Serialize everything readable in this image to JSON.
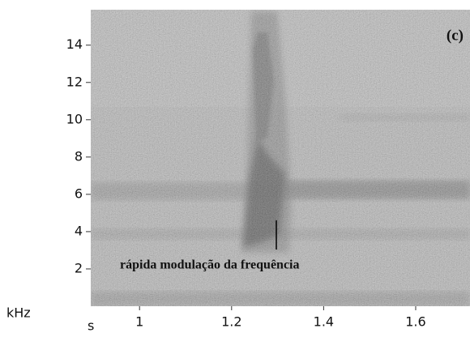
{
  "chart_data": {
    "type": "spectrogram",
    "annotation": "rápida modulação da frequência",
    "panel_label": "(c)",
    "y_label": "kHz",
    "x_label": "s",
    "xlim": [
      0.894,
      1.718
    ],
    "xticks": [
      1,
      1.2,
      1.4,
      1.6
    ],
    "ylim": [
      0,
      15.9
    ],
    "yticks": [
      2,
      4,
      6,
      8,
      10,
      12,
      14
    ],
    "grid": false
  }
}
